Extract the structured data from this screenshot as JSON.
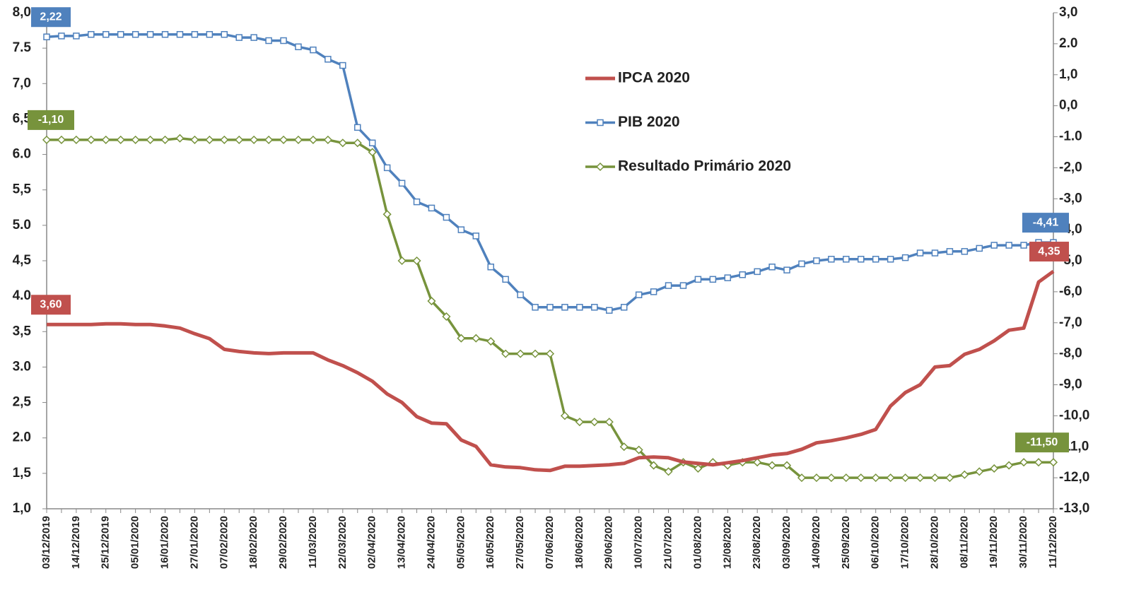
{
  "chart_data": {
    "type": "line",
    "categories": [
      "03/12/2019",
      null,
      "14/12/2019",
      null,
      "25/12/2019",
      null,
      "05/01/2020",
      null,
      "16/01/2020",
      null,
      "27/01/2020",
      null,
      "07/02/2020",
      null,
      "18/02/2020",
      null,
      "29/02/2020",
      null,
      "11/03/2020",
      null,
      "22/03/2020",
      null,
      "02/04/2020",
      null,
      "13/04/2020",
      null,
      "24/04/2020",
      null,
      "05/05/2020",
      null,
      "16/05/2020",
      null,
      "27/05/2020",
      null,
      "07/06/2020",
      null,
      "18/06/2020",
      null,
      "29/06/2020",
      null,
      "10/07/2020",
      null,
      "21/07/2020",
      null,
      "01/08/2020",
      null,
      "12/08/2020",
      null,
      "23/08/2020",
      null,
      "03/09/2020",
      null,
      "14/09/2020",
      null,
      "25/09/2020",
      null,
      "06/10/2020",
      null,
      "17/10/2020",
      null,
      "28/10/2020",
      null,
      "08/11/2020",
      null,
      "19/11/2020",
      null,
      "30/11/2020",
      null,
      "11/12/2020"
    ],
    "series": [
      {
        "name": "IPCA 2020",
        "color": "#c0504d",
        "marker": "none",
        "values": [
          3.6,
          3.6,
          3.6,
          3.6,
          3.61,
          3.61,
          3.6,
          3.6,
          3.58,
          3.55,
          3.47,
          3.4,
          3.25,
          3.22,
          3.2,
          3.19,
          3.2,
          3.2,
          3.2,
          3.1,
          3.02,
          2.92,
          2.8,
          2.62,
          2.5,
          2.3,
          2.21,
          2.2,
          1.97,
          1.88,
          1.62,
          1.59,
          1.58,
          1.55,
          1.54,
          1.6,
          1.6,
          1.61,
          1.62,
          1.64,
          1.72,
          1.73,
          1.72,
          1.66,
          1.64,
          1.62,
          1.65,
          1.68,
          1.72,
          1.76,
          1.78,
          1.84,
          1.93,
          1.96,
          2.0,
          2.05,
          2.12,
          2.45,
          2.64,
          2.75,
          3.0,
          3.02,
          3.18,
          3.25,
          3.37,
          3.52,
          3.55,
          4.2,
          4.35
        ],
        "value_labels": [
          "3,60",
          null,
          null,
          null,
          null,
          null,
          null,
          null,
          null,
          null,
          null,
          null,
          null,
          null,
          null,
          null,
          null,
          null,
          null,
          null,
          null,
          null,
          null,
          null,
          null,
          null,
          null,
          null,
          null,
          null,
          null,
          null,
          null,
          null,
          null,
          null,
          null,
          null,
          null,
          null,
          null,
          null,
          null,
          null,
          null,
          null,
          null,
          null,
          null,
          null,
          null,
          null,
          null,
          null,
          null,
          null,
          null,
          null,
          null,
          null,
          null,
          null,
          null,
          null,
          null,
          null,
          null,
          null,
          "4,35"
        ]
      },
      {
        "name": "PIB 2020",
        "color": "#4f81bd",
        "marker": "square",
        "axis": "y2",
        "values": [
          2.22,
          2.25,
          2.25,
          2.3,
          2.3,
          2.3,
          2.3,
          2.3,
          2.3,
          2.3,
          2.3,
          2.3,
          2.3,
          2.2,
          2.2,
          2.1,
          2.1,
          1.9,
          1.8,
          1.5,
          1.3,
          -0.7,
          -1.2,
          -2.0,
          -2.5,
          -3.1,
          -3.3,
          -3.6,
          -4.0,
          -4.2,
          -5.2,
          -5.6,
          -6.1,
          -6.5,
          -6.5,
          -6.5,
          -6.5,
          -6.5,
          -6.6,
          -6.5,
          -6.1,
          -6.0,
          -5.8,
          -5.8,
          -5.6,
          -5.6,
          -5.55,
          -5.45,
          -5.35,
          -5.2,
          -5.3,
          -5.1,
          -5.0,
          -4.95,
          -4.95,
          -4.95,
          -4.95,
          -4.95,
          -4.9,
          -4.75,
          -4.75,
          -4.7,
          -4.7,
          -4.6,
          -4.5,
          -4.5,
          -4.5,
          -4.41,
          -4.41
        ],
        "value_labels": [
          "2,22",
          null,
          null,
          null,
          null,
          null,
          null,
          null,
          null,
          null,
          null,
          null,
          null,
          null,
          null,
          null,
          null,
          null,
          null,
          null,
          null,
          null,
          null,
          null,
          null,
          null,
          null,
          null,
          null,
          null,
          null,
          null,
          null,
          null,
          null,
          null,
          null,
          null,
          null,
          null,
          null,
          null,
          null,
          null,
          null,
          null,
          null,
          null,
          null,
          null,
          null,
          null,
          null,
          null,
          null,
          null,
          null,
          null,
          null,
          null,
          null,
          null,
          null,
          null,
          null,
          null,
          null,
          null,
          "-4,41"
        ]
      },
      {
        "name": "Resultado Primário 2020",
        "color": "#77933c",
        "marker": "diamond",
        "axis": "y2",
        "values": [
          -1.1,
          -1.1,
          -1.1,
          -1.1,
          -1.1,
          -1.1,
          -1.1,
          -1.1,
          -1.1,
          -1.05,
          -1.1,
          -1.1,
          -1.1,
          -1.1,
          -1.1,
          -1.1,
          -1.1,
          -1.1,
          -1.1,
          -1.1,
          -1.2,
          -1.2,
          -1.5,
          -3.5,
          -5.0,
          -5.0,
          -6.3,
          -6.8,
          -7.5,
          -7.5,
          -7.6,
          -8.0,
          -8.0,
          -8.0,
          -8.0,
          -10.0,
          -10.2,
          -10.2,
          -10.2,
          -11.0,
          -11.1,
          -11.6,
          -11.8,
          -11.5,
          -11.7,
          -11.5,
          -11.6,
          -11.5,
          -11.5,
          -11.6,
          -11.6,
          -12.0,
          -12.0,
          -12.0,
          -12.0,
          -12.0,
          -12.0,
          -12.0,
          -12.0,
          -12.0,
          -12.0,
          -12.0,
          -11.9,
          -11.8,
          -11.7,
          -11.6,
          -11.5,
          -11.5,
          -11.5
        ],
        "value_labels": [
          "-1,10",
          null,
          null,
          null,
          null,
          null,
          null,
          null,
          null,
          null,
          null,
          null,
          null,
          null,
          null,
          null,
          null,
          null,
          null,
          null,
          null,
          null,
          null,
          null,
          null,
          null,
          null,
          null,
          null,
          null,
          null,
          null,
          null,
          null,
          null,
          null,
          null,
          null,
          null,
          null,
          null,
          null,
          null,
          null,
          null,
          null,
          null,
          null,
          null,
          null,
          null,
          null,
          null,
          null,
          null,
          null,
          null,
          null,
          null,
          null,
          null,
          null,
          null,
          null,
          null,
          null,
          null,
          null,
          "-11,50"
        ]
      }
    ],
    "ylim": [
      1,
      8
    ],
    "yticks": [
      {
        "value": 1,
        "label": "1,0"
      },
      {
        "value": 1.5,
        "label": "1,5"
      },
      {
        "value": 2,
        "label": "2.0"
      },
      {
        "value": 2.5,
        "label": "2,5"
      },
      {
        "value": 3,
        "label": "3.0"
      },
      {
        "value": 3.5,
        "label": "3,5"
      },
      {
        "value": 4,
        "label": "4.0"
      },
      {
        "value": 4.5,
        "label": "4,5"
      },
      {
        "value": 5,
        "label": "5.0"
      },
      {
        "value": 5.5,
        "label": "5,5"
      },
      {
        "value": 6,
        "label": "6.0"
      },
      {
        "value": 6.5,
        "label": "6,5"
      },
      {
        "value": 7,
        "label": "7,0"
      },
      {
        "value": 7.5,
        "label": "7.5"
      },
      {
        "value": 8,
        "label": "8,0"
      }
    ],
    "y2lim": [
      -13,
      3
    ],
    "y2ticks": [
      {
        "value": -13,
        "label": "-13,0"
      },
      {
        "value": -12,
        "label": "-12,0"
      },
      {
        "value": -11,
        "label": "-11,0"
      },
      {
        "value": -10,
        "label": "-10,0"
      },
      {
        "value": -9,
        "label": "-9,0"
      },
      {
        "value": -8,
        "label": "-8,0"
      },
      {
        "value": -7,
        "label": "-7,0"
      },
      {
        "value": -6,
        "label": "-6,0"
      },
      {
        "value": -5,
        "label": "-5,0"
      },
      {
        "value": -4,
        "label": "-4,0"
      },
      {
        "value": -3,
        "label": "-3,0"
      },
      {
        "value": -2,
        "label": "-2,0"
      },
      {
        "value": -1,
        "label": "-1.0"
      },
      {
        "value": 0,
        "label": "0,0"
      },
      {
        "value": 1,
        "label": "1,0"
      },
      {
        "value": 2,
        "label": "2.0"
      },
      {
        "value": 3,
        "label": "3,0"
      }
    ],
    "grid": false
  }
}
